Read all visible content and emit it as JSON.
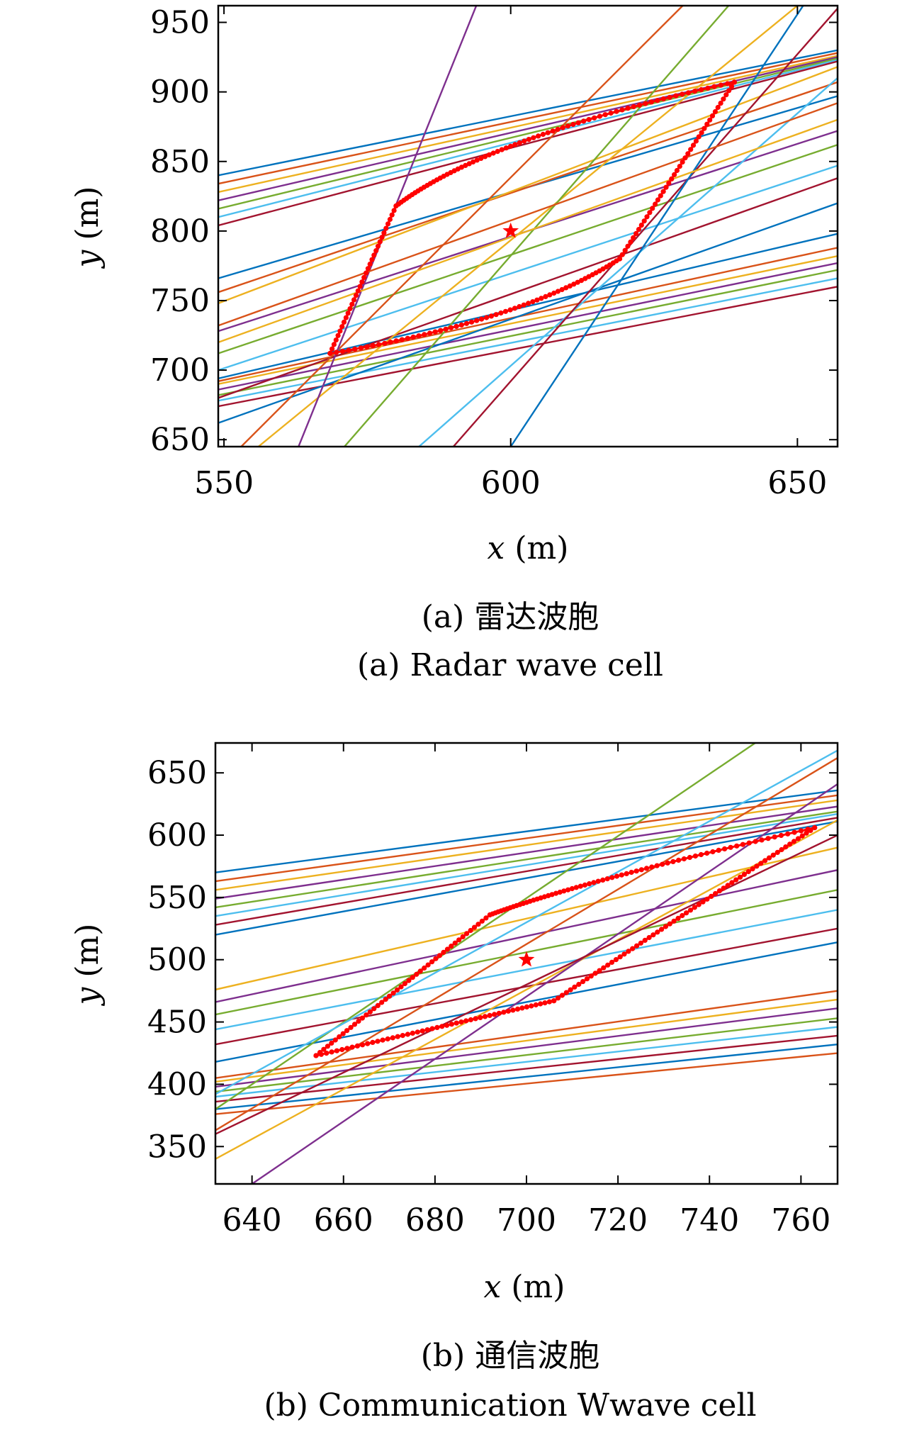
{
  "colors": {
    "lines": [
      "#0072BD",
      "#D95319",
      "#EDB120",
      "#7E2F8E",
      "#77AC30",
      "#4DBEEE",
      "#A2142F"
    ],
    "boundary": "#FF0000",
    "center": "#FF0000"
  },
  "chart_data": [
    {
      "type": "line",
      "caption_cn": "(a) 雷达波胞",
      "caption_en": "(a) Radar wave cell",
      "xlabel_var": "x",
      "xlabel_unit": "(m)",
      "ylabel_var": "y",
      "ylabel_unit": "(m)",
      "xlim": [
        549,
        657
      ],
      "ylim": [
        645,
        962
      ],
      "xticks": [
        550,
        600,
        650
      ],
      "yticks": [
        650,
        700,
        750,
        800,
        850,
        900,
        950
      ],
      "center": [
        600,
        800
      ],
      "boundary": {
        "left": [
          568.5,
          712
        ],
        "top": [
          580,
          818
        ],
        "right": [
          639,
          907
        ],
        "bottom": [
          619,
          780
        ],
        "top_pull": [
          596,
          868
        ],
        "bottom_pull": [
          602,
          735
        ]
      },
      "lines": [
        {
          "x1": 549,
          "y1": 840,
          "x2": 657,
          "y2": 930
        },
        {
          "x1": 549,
          "y1": 834,
          "x2": 657,
          "y2": 928
        },
        {
          "x1": 549,
          "y1": 828,
          "x2": 657,
          "y2": 926
        },
        {
          "x1": 549,
          "y1": 822,
          "x2": 657,
          "y2": 925
        },
        {
          "x1": 549,
          "y1": 816,
          "x2": 657,
          "y2": 924
        },
        {
          "x1": 549,
          "y1": 810,
          "x2": 657,
          "y2": 923
        },
        {
          "x1": 549,
          "y1": 804,
          "x2": 657,
          "y2": 922
        },
        {
          "x1": 549,
          "y1": 694,
          "x2": 657,
          "y2": 798
        },
        {
          "x1": 549,
          "y1": 692,
          "x2": 657,
          "y2": 788
        },
        {
          "x1": 549,
          "y1": 690,
          "x2": 657,
          "y2": 782
        },
        {
          "x1": 549,
          "y1": 686,
          "x2": 657,
          "y2": 777
        },
        {
          "x1": 549,
          "y1": 682,
          "x2": 657,
          "y2": 772
        },
        {
          "x1": 549,
          "y1": 678,
          "x2": 657,
          "y2": 766
        },
        {
          "x1": 549,
          "y1": 674,
          "x2": 657,
          "y2": 760
        },
        {
          "x1": 549,
          "y1": 766,
          "x2": 657,
          "y2": 897
        },
        {
          "x1": 549,
          "y1": 756,
          "x2": 657,
          "y2": 907
        },
        {
          "x1": 549,
          "y1": 748,
          "x2": 657,
          "y2": 918
        },
        {
          "x1": 549,
          "y1": 728,
          "x2": 657,
          "y2": 872
        },
        {
          "x1": 549,
          "y1": 712,
          "x2": 657,
          "y2": 862
        },
        {
          "x1": 549,
          "y1": 700,
          "x2": 657,
          "y2": 847
        },
        {
          "x1": 549,
          "y1": 680,
          "x2": 657,
          "y2": 838
        },
        {
          "x1": 549,
          "y1": 662,
          "x2": 657,
          "y2": 820
        },
        {
          "x1": 553,
          "y1": 645,
          "x2": 630,
          "y2": 962
        },
        {
          "x1": 556,
          "y1": 645,
          "x2": 650,
          "y2": 962
        },
        {
          "x1": 563,
          "y1": 645,
          "x2": 594,
          "y2": 962
        },
        {
          "x1": 571,
          "y1": 645,
          "x2": 638,
          "y2": 962
        },
        {
          "x1": 584,
          "y1": 645,
          "x2": 657,
          "y2": 910
        },
        {
          "x1": 590,
          "y1": 645,
          "x2": 657,
          "y2": 960
        },
        {
          "x1": 600,
          "y1": 645,
          "x2": 651,
          "y2": 962
        },
        {
          "x1": 549,
          "y1": 732,
          "x2": 657,
          "y2": 892
        },
        {
          "x1": 549,
          "y1": 720,
          "x2": 657,
          "y2": 880
        }
      ]
    },
    {
      "type": "line",
      "caption_cn": "(b) 通信波胞",
      "caption_en": "(b) Communication Wwave cell",
      "xlabel_var": "x",
      "xlabel_unit": "(m)",
      "ylabel_var": "y",
      "ylabel_unit": "(m)",
      "xlim": [
        632,
        768
      ],
      "ylim": [
        320,
        674
      ],
      "xticks": [
        640,
        660,
        680,
        700,
        720,
        740,
        760
      ],
      "yticks": [
        350,
        400,
        450,
        500,
        550,
        600,
        650
      ],
      "center": [
        700,
        500
      ],
      "boundary": {
        "left": [
          654,
          423
        ],
        "top": [
          692,
          536
        ],
        "right": [
          763,
          606
        ],
        "bottom": [
          706,
          467
        ],
        "top_pull": [
          712,
          563
        ],
        "bottom_pull": [
          682,
          447
        ]
      },
      "lines": [
        {
          "x1": 632,
          "y1": 570,
          "x2": 768,
          "y2": 636
        },
        {
          "x1": 632,
          "y1": 563,
          "x2": 768,
          "y2": 632
        },
        {
          "x1": 632,
          "y1": 556,
          "x2": 768,
          "y2": 628
        },
        {
          "x1": 632,
          "y1": 549,
          "x2": 768,
          "y2": 623
        },
        {
          "x1": 632,
          "y1": 542,
          "x2": 768,
          "y2": 619
        },
        {
          "x1": 632,
          "y1": 535,
          "x2": 768,
          "y2": 617
        },
        {
          "x1": 632,
          "y1": 528,
          "x2": 768,
          "y2": 614
        },
        {
          "x1": 632,
          "y1": 520,
          "x2": 768,
          "y2": 611
        },
        {
          "x1": 632,
          "y1": 405,
          "x2": 768,
          "y2": 475
        },
        {
          "x1": 632,
          "y1": 402,
          "x2": 768,
          "y2": 468
        },
        {
          "x1": 632,
          "y1": 398,
          "x2": 768,
          "y2": 461
        },
        {
          "x1": 632,
          "y1": 394,
          "x2": 768,
          "y2": 453
        },
        {
          "x1": 632,
          "y1": 390,
          "x2": 768,
          "y2": 446
        },
        {
          "x1": 632,
          "y1": 386,
          "x2": 768,
          "y2": 439
        },
        {
          "x1": 632,
          "y1": 380,
          "x2": 768,
          "y2": 432
        },
        {
          "x1": 632,
          "y1": 376,
          "x2": 768,
          "y2": 425
        },
        {
          "x1": 632,
          "y1": 476,
          "x2": 768,
          "y2": 590
        },
        {
          "x1": 632,
          "y1": 466,
          "x2": 768,
          "y2": 572
        },
        {
          "x1": 632,
          "y1": 456,
          "x2": 768,
          "y2": 556
        },
        {
          "x1": 632,
          "y1": 444,
          "x2": 768,
          "y2": 540
        },
        {
          "x1": 632,
          "y1": 432,
          "x2": 768,
          "y2": 525
        },
        {
          "x1": 632,
          "y1": 418,
          "x2": 768,
          "y2": 514
        },
        {
          "x1": 632,
          "y1": 363,
          "x2": 768,
          "y2": 662
        },
        {
          "x1": 632,
          "y1": 340,
          "x2": 768,
          "y2": 612
        },
        {
          "x1": 640,
          "y1": 320,
          "x2": 768,
          "y2": 641
        },
        {
          "x1": 632,
          "y1": 380,
          "x2": 750,
          "y2": 674
        },
        {
          "x1": 632,
          "y1": 392,
          "x2": 768,
          "y2": 668
        },
        {
          "x1": 632,
          "y1": 360,
          "x2": 768,
          "y2": 600
        }
      ]
    }
  ]
}
